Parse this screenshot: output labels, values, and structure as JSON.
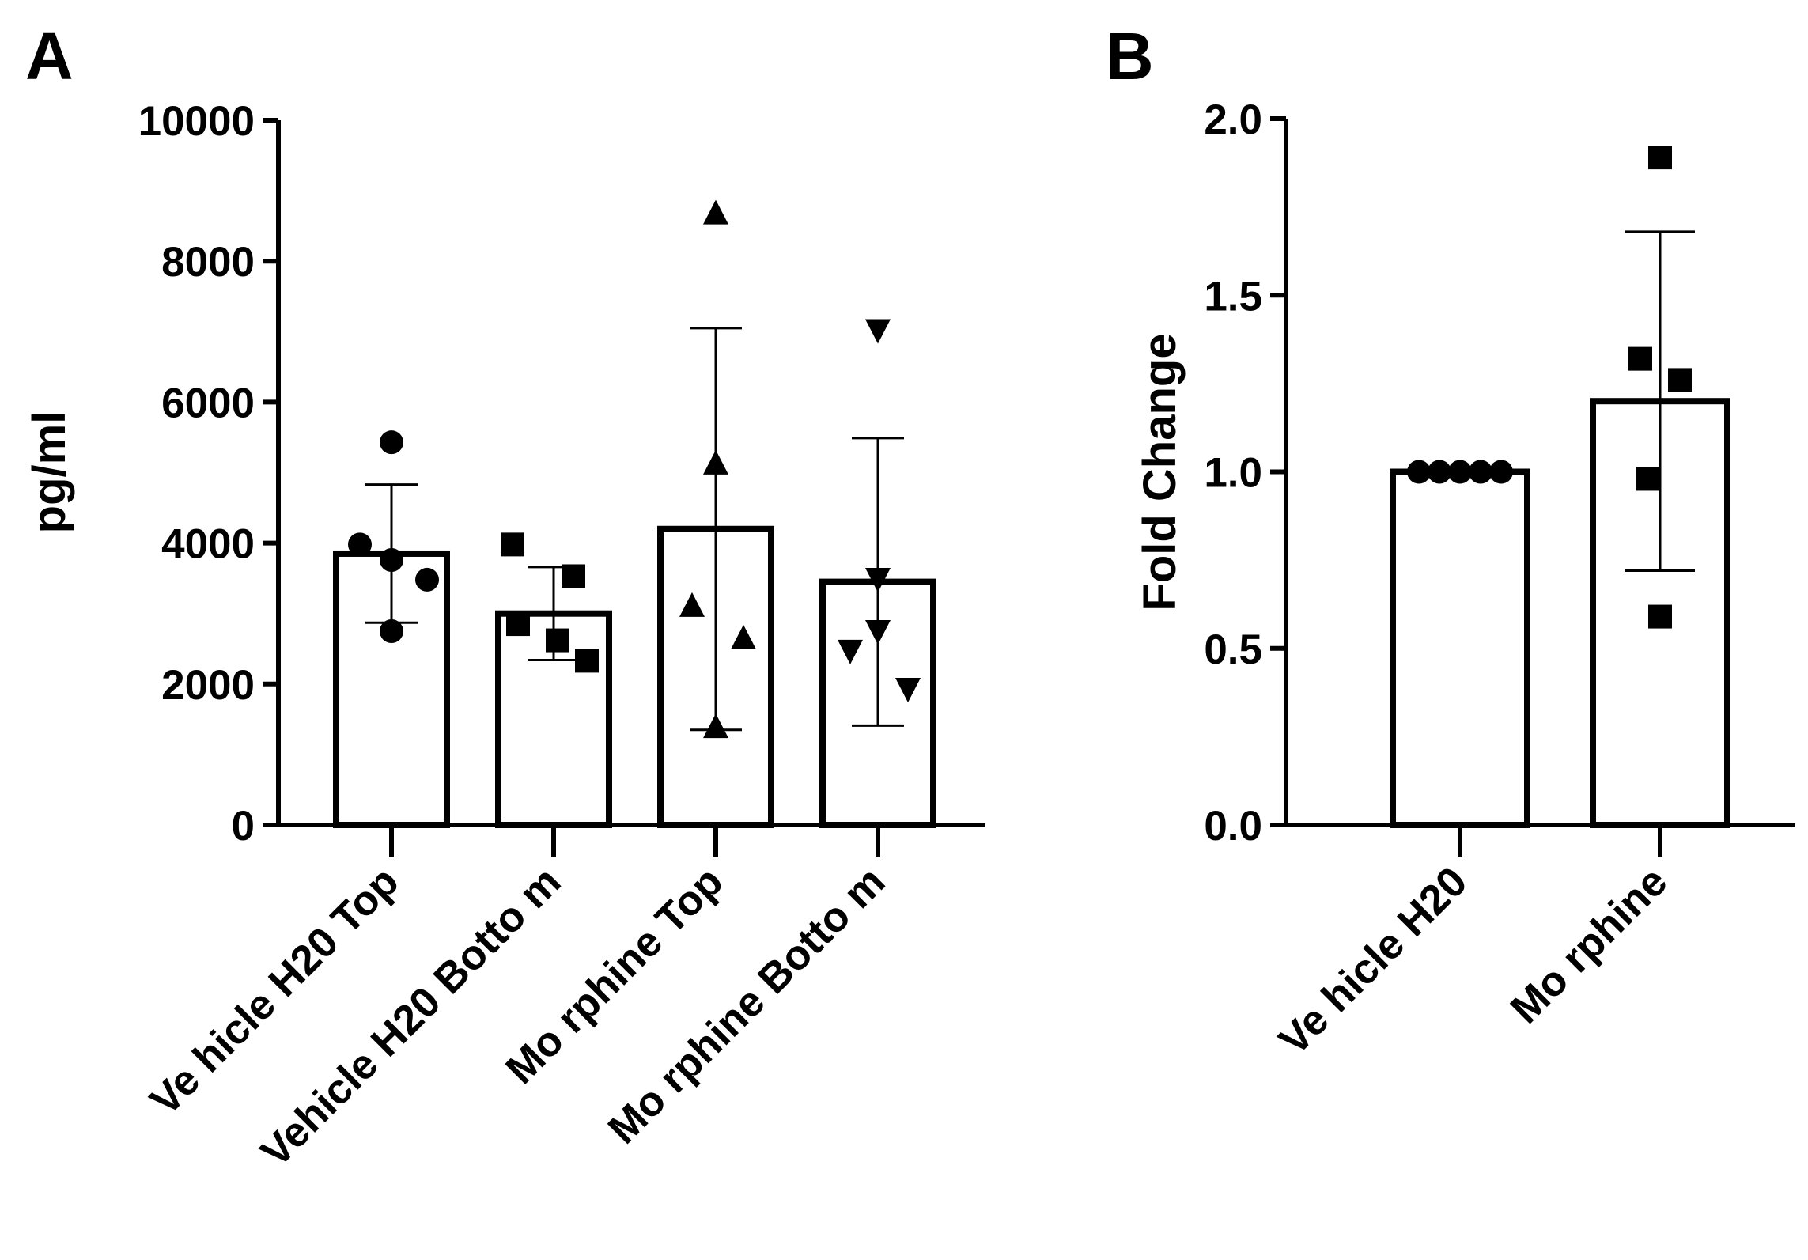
{
  "chart_data": [
    {
      "panel": "A",
      "type": "bar",
      "ylabel": "pg/ml",
      "ylim": [
        0,
        10000
      ],
      "yticks": [
        0,
        2000,
        4000,
        6000,
        8000,
        10000
      ],
      "ytick_labels": [
        "0",
        "2000",
        "4000",
        "6000",
        "8000",
        "10000"
      ],
      "categories": [
        "Ve hicle H20 Top",
        "Vehicle H20 Botto m",
        "Mo rphine Top",
        "Mo rphine Botto m"
      ],
      "means": [
        3850,
        3000,
        4200,
        3450
      ],
      "sd": [
        980,
        660,
        2850,
        2040
      ],
      "markers": [
        "circle",
        "square",
        "triangle-up",
        "triangle-down"
      ],
      "points": [
        [
          5430,
          3980,
          3760,
          3480,
          2750
        ],
        [
          3980,
          3530,
          2850,
          2620,
          2330
        ],
        [
          8680,
          5130,
          3110,
          2650,
          1390
        ],
        [
          7020,
          3490,
          2750,
          2470,
          1930
        ]
      ]
    },
    {
      "panel": "B",
      "type": "bar",
      "ylabel": "Fold Change",
      "ylim": [
        0,
        2.0
      ],
      "yticks": [
        0,
        0.5,
        1.0,
        1.5,
        2.0
      ],
      "ytick_labels": [
        "0.0",
        "0.5",
        "1.0",
        "1.5",
        "2.0"
      ],
      "categories": [
        "Ve hicle H20",
        "Mo rphine"
      ],
      "means": [
        1.0,
        1.2
      ],
      "sd": [
        0,
        0.48
      ],
      "markers": [
        "circle",
        "square"
      ],
      "points": [
        [
          1.0,
          1.0,
          1.0,
          1.0,
          1.0
        ],
        [
          1.89,
          1.32,
          1.26,
          0.98,
          0.59
        ]
      ]
    }
  ]
}
